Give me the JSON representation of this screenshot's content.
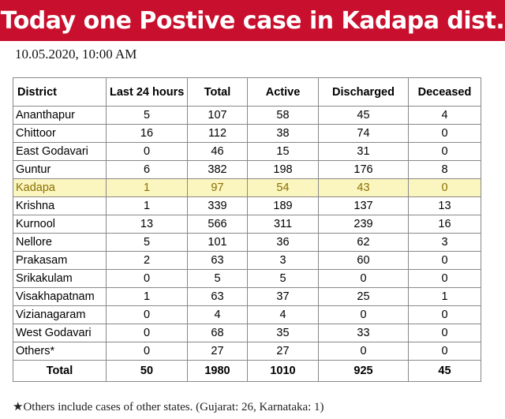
{
  "banner": {
    "title": "Today one Postive case in Kadapa dist."
  },
  "timestamp": "10.05.2020, 10:00 AM",
  "table": {
    "headers": [
      "District",
      "Last 24 hours",
      "Total",
      "Active",
      "Discharged",
      "Deceased"
    ],
    "highlight_district": "Kadapa",
    "rows": [
      [
        "Ananthapur",
        "5",
        "107",
        "58",
        "45",
        "4"
      ],
      [
        "Chittoor",
        "16",
        "112",
        "38",
        "74",
        "0"
      ],
      [
        "East Godavari",
        "0",
        "46",
        "15",
        "31",
        "0"
      ],
      [
        "Guntur",
        "6",
        "382",
        "198",
        "176",
        "8"
      ],
      [
        "Kadapa",
        "1",
        "97",
        "54",
        "43",
        "0"
      ],
      [
        "Krishna",
        "1",
        "339",
        "189",
        "137",
        "13"
      ],
      [
        "Kurnool",
        "13",
        "566",
        "311",
        "239",
        "16"
      ],
      [
        "Nellore",
        "5",
        "101",
        "36",
        "62",
        "3"
      ],
      [
        "Prakasam",
        "2",
        "63",
        "3",
        "60",
        "0"
      ],
      [
        "Srikakulam",
        "0",
        "5",
        "5",
        "0",
        "0"
      ],
      [
        "Visakhapatnam",
        "1",
        "63",
        "37",
        "25",
        "1"
      ],
      [
        "Vizianagaram",
        "0",
        "4",
        "4",
        "0",
        "0"
      ],
      [
        "West Godavari",
        "0",
        "68",
        "35",
        "33",
        "0"
      ],
      [
        "Others*",
        "0",
        "27",
        "27",
        "0",
        "0"
      ]
    ],
    "total": [
      "Total",
      "50",
      "1980",
      "1010",
      "925",
      "45"
    ]
  },
  "footnote": "★Others include cases of other states. (Gujarat: 26, Karnataka: 1)",
  "colors": {
    "banner": "#c8102e",
    "highlight_bg": "#fbf5c0",
    "highlight_text": "#8a7000"
  }
}
